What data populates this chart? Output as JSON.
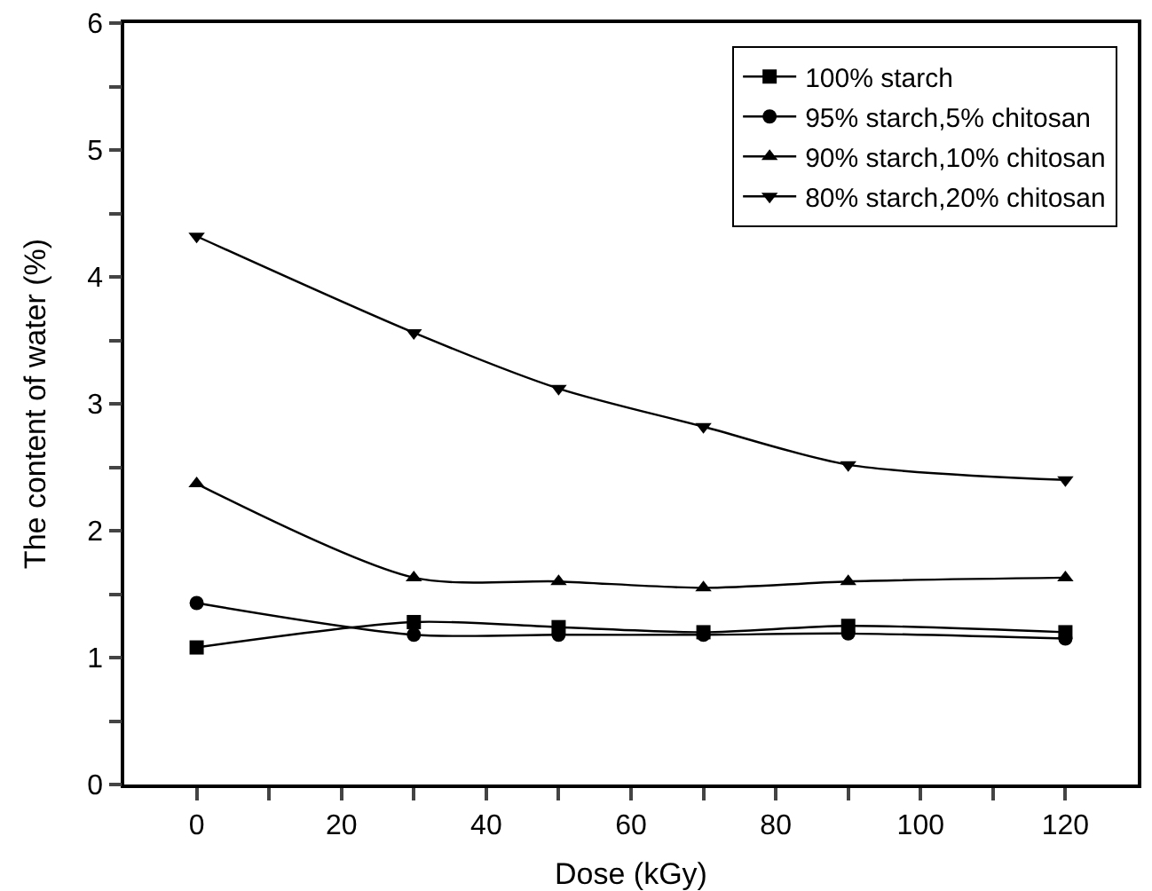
{
  "chart_data": {
    "type": "line",
    "xlabel": "Dose (kGy)",
    "ylabel": "The content of water (%)",
    "x": [
      0,
      30,
      50,
      70,
      90,
      120
    ],
    "series": [
      {
        "name": "100% starch",
        "color": "#000000",
        "marker": "square",
        "values": [
          1.08,
          1.28,
          1.24,
          1.2,
          1.25,
          1.2
        ]
      },
      {
        "name": "95% starch,5% chitosan",
        "color": "#000000",
        "marker": "circle",
        "values": [
          1.43,
          1.18,
          1.18,
          1.18,
          1.19,
          1.15
        ]
      },
      {
        "name": "90% starch,10% chitosan",
        "color": "#000000",
        "marker": "triangle",
        "values": [
          2.37,
          1.63,
          1.6,
          1.55,
          1.6,
          1.63
        ]
      },
      {
        "name": "80% starch,20% chitosan",
        "color": "#000000",
        "marker": "triangle-down",
        "values": [
          4.32,
          3.56,
          3.12,
          2.82,
          2.52,
          2.4
        ]
      }
    ],
    "xlim": [
      -10,
      130
    ],
    "xticks": [
      0,
      {
        "value": 10,
        "label": null
      },
      20,
      {
        "value": 30,
        "label": null
      },
      40,
      {
        "value": 50,
        "label": null
      },
      60,
      {
        "value": 70,
        "label": null
      },
      80,
      {
        "value": 90,
        "label": null
      },
      100,
      {
        "value": 110,
        "label": null
      },
      120
    ],
    "ylim": [
      0,
      6
    ],
    "yticks": [
      0,
      {
        "value": 0.5,
        "label": null
      },
      1,
      {
        "value": 1.5,
        "label": null
      },
      2,
      {
        "value": 2.5,
        "label": null
      },
      3,
      {
        "value": 3.5,
        "label": null
      },
      4,
      {
        "value": 4.5,
        "label": null
      },
      5,
      {
        "value": 5.5,
        "label": null
      },
      6
    ],
    "grid": false,
    "legend": "top right",
    "line_style": "solid"
  }
}
